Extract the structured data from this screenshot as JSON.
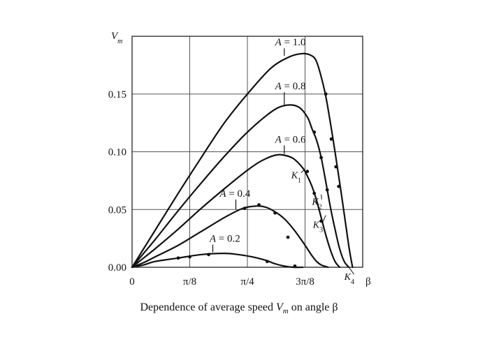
{
  "chart_data": {
    "type": "line",
    "caption": {
      "pre": "Dependence of average speed ",
      "var": "V",
      "sub": "m",
      "post": " on angle β"
    },
    "ylabel": {
      "var": "V",
      "sub": "m"
    },
    "xlabel": "β",
    "xlim": [
      0,
      0.5
    ],
    "ylim": [
      0,
      0.2
    ],
    "grid": true,
    "x_ticks": [
      {
        "label": "0",
        "value": 0
      },
      {
        "label": "π/8",
        "value": 0.125
      },
      {
        "label": "π/4",
        "value": 0.25
      },
      {
        "label": "3π/8",
        "value": 0.375
      }
    ],
    "y_ticks": [
      {
        "label": "0.00",
        "value": 0
      },
      {
        "label": "0.05",
        "value": 0.05
      },
      {
        "label": "0.10",
        "value": 0.1
      },
      {
        "label": "0.15",
        "value": 0.15
      }
    ],
    "x_grid": [
      0.125,
      0.25,
      0.375
    ],
    "y_grid": [
      0.05,
      0.1,
      0.15
    ],
    "series": [
      {
        "name": "A = 1.0",
        "x": [
          0,
          0.025,
          0.05,
          0.1,
          0.15,
          0.2,
          0.25,
          0.3,
          0.34,
          0.37,
          0.39,
          0.4,
          0.41,
          0.42,
          0.43,
          0.44,
          0.455,
          0.47,
          0.478
        ],
        "y": [
          0,
          0.016,
          0.032,
          0.064,
          0.095,
          0.125,
          0.15,
          0.172,
          0.182,
          0.185,
          0.183,
          0.178,
          0.165,
          0.148,
          0.125,
          0.1,
          0.06,
          0.018,
          0
        ],
        "markers_x": [
          0.42,
          0.432,
          0.442,
          0.448
        ],
        "markers_y": [
          0.15,
          0.111,
          0.087,
          0.07
        ]
      },
      {
        "name": "A = 0.8",
        "x": [
          0,
          0.025,
          0.05,
          0.1,
          0.15,
          0.2,
          0.25,
          0.3,
          0.33,
          0.36,
          0.38,
          0.39,
          0.4,
          0.41,
          0.42,
          0.43,
          0.44,
          0.45,
          0.46,
          0.47
        ],
        "y": [
          0,
          0.012,
          0.024,
          0.049,
          0.073,
          0.096,
          0.117,
          0.134,
          0.14,
          0.139,
          0.13,
          0.12,
          0.11,
          0.095,
          0.074,
          0.052,
          0.033,
          0.016,
          0.005,
          0
        ],
        "markers_x": [
          0.395,
          0.41,
          0.423
        ],
        "markers_y": [
          0.117,
          0.095,
          0.067
        ]
      },
      {
        "name": "A = 0.6",
        "x": [
          0,
          0.025,
          0.05,
          0.1,
          0.15,
          0.2,
          0.25,
          0.28,
          0.31,
          0.33,
          0.35,
          0.37,
          0.38,
          0.39,
          0.4,
          0.41,
          0.42,
          0.43,
          0.44,
          0.45
        ],
        "y": [
          0,
          0.008,
          0.016,
          0.033,
          0.051,
          0.068,
          0.084,
          0.092,
          0.097,
          0.097,
          0.094,
          0.086,
          0.079,
          0.07,
          0.058,
          0.043,
          0.028,
          0.015,
          0.005,
          0
        ],
        "markers_x": [
          0.38,
          0.395,
          0.41
        ],
        "markers_y": [
          0.083,
          0.064,
          0.04
        ]
      },
      {
        "name": "A = 0.4",
        "x": [
          0,
          0.025,
          0.05,
          0.1,
          0.15,
          0.2,
          0.24,
          0.27,
          0.29,
          0.31,
          0.33,
          0.35,
          0.37,
          0.38,
          0.39,
          0.4,
          0.41,
          0.425
        ],
        "y": [
          0,
          0.004,
          0.009,
          0.019,
          0.031,
          0.043,
          0.051,
          0.053,
          0.052,
          0.048,
          0.042,
          0.033,
          0.022,
          0.016,
          0.01,
          0.005,
          0.002,
          0
        ],
        "markers_x": [
          0.244,
          0.275,
          0.31,
          0.338
        ],
        "markers_y": [
          0.051,
          0.054,
          0.047,
          0.026
        ]
      },
      {
        "name": "A = 0.2",
        "x": [
          0,
          0.025,
          0.05,
          0.1,
          0.15,
          0.2,
          0.23,
          0.26,
          0.29,
          0.31,
          0.33,
          0.35,
          0.37
        ],
        "y": [
          0,
          0.002,
          0.005,
          0.008,
          0.011,
          0.012,
          0.011,
          0.009,
          0.006,
          0.003,
          0.001,
          0,
          0
        ],
        "markers_x": [
          0.1,
          0.125,
          0.166,
          0.293,
          0.353
        ],
        "markers_y": [
          0.008,
          0.009,
          0.011,
          0.005,
          0.001
        ]
      }
    ],
    "series_labels": [
      {
        "text": "A = 1.0",
        "at": [
          0.31,
          0.192
        ],
        "pointer_to": [
          0.33,
          0.183
        ]
      },
      {
        "text": "A = 0.8",
        "at": [
          0.31,
          0.154
        ],
        "pointer_to": [
          0.33,
          0.14
        ]
      },
      {
        "text": "A = 0.6",
        "at": [
          0.31,
          0.108
        ],
        "pointer_to": [
          0.33,
          0.098
        ]
      },
      {
        "text": "A = 0.4",
        "at": [
          0.19,
          0.061
        ],
        "pointer_to": [
          0.225,
          0.05
        ]
      },
      {
        "text": "A = 0.2",
        "at": [
          0.168,
          0.022
        ],
        "pointer_to": [
          0.175,
          0.013
        ]
      }
    ],
    "markers": [
      {
        "letter": "K",
        "sub": "1",
        "at": [
          0.345,
          0.077
        ],
        "pointer_to": [
          0.375,
          0.085
        ]
      },
      {
        "letter": "K",
        "sub": "2",
        "at": [
          0.39,
          0.054
        ],
        "pointer_to": [
          0.41,
          0.063
        ]
      },
      {
        "letter": "K",
        "sub": "3",
        "at": [
          0.392,
          0.034
        ],
        "pointer_to": [
          0.42,
          0.045
        ]
      },
      {
        "letter": "K",
        "sub": "4",
        "at": [
          0.46,
          -0.011
        ],
        "pointer_to": [
          0.47,
          0
        ]
      }
    ]
  }
}
